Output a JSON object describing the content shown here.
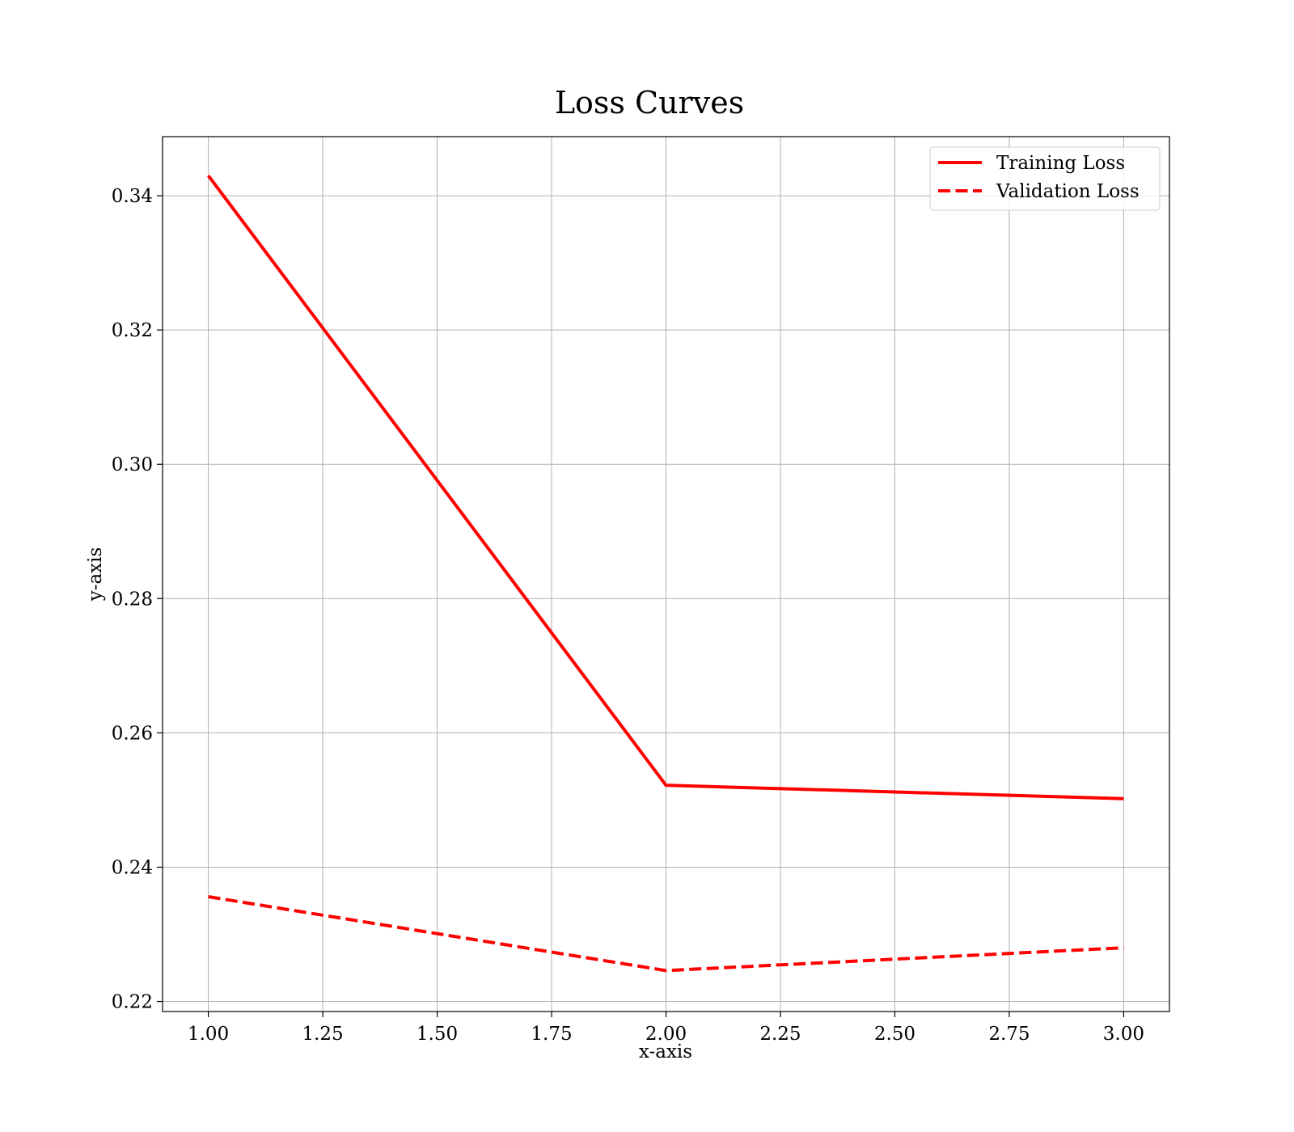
{
  "chart_data": {
    "type": "line",
    "title": "Loss Curves",
    "xlabel": "x-axis",
    "ylabel": "y-axis",
    "x": [
      1,
      2,
      3
    ],
    "series": [
      {
        "name": "Training Loss",
        "values": [
          0.343,
          0.2522,
          0.2502
        ],
        "color": "#ff0000",
        "style": "solid"
      },
      {
        "name": "Validation Loss",
        "values": [
          0.2356,
          0.2246,
          0.228
        ],
        "color": "#ff0000",
        "style": "dashed"
      }
    ],
    "xlim": [
      0.9,
      3.1
    ],
    "ylim": [
      0.2185,
      0.3488
    ],
    "xticks": [
      1.0,
      1.25,
      1.5,
      1.75,
      2.0,
      2.25,
      2.5,
      2.75,
      3.0
    ],
    "xtick_labels": [
      "1.00",
      "1.25",
      "1.50",
      "1.75",
      "2.00",
      "2.25",
      "2.50",
      "2.75",
      "3.00"
    ],
    "yticks": [
      0.22,
      0.24,
      0.26,
      0.28,
      0.3,
      0.32,
      0.34
    ],
    "ytick_labels": [
      "0.22",
      "0.24",
      "0.26",
      "0.28",
      "0.30",
      "0.32",
      "0.34"
    ],
    "grid": true,
    "legend_position": "top-right"
  }
}
